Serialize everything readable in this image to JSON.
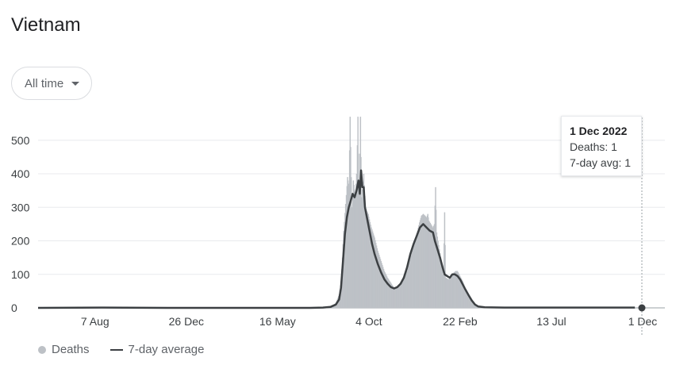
{
  "page": {
    "title": "Vietnam",
    "range_selector": "All time"
  },
  "tooltip": {
    "date": "1 Dec 2022",
    "deaths": "Deaths: 1",
    "avg": "7-day avg: 1"
  },
  "legend": {
    "deaths": "Deaths",
    "avg": "7-day average"
  },
  "colors": {
    "bars": "#bdc1c6",
    "line": "#3c4043",
    "grid": "#e8eaed"
  },
  "chart_data": {
    "type": "bar",
    "xlabel": "",
    "ylabel": "",
    "ylim": [
      0,
      570
    ],
    "y_ticks": [
      0,
      100,
      200,
      300,
      400,
      500
    ],
    "x_ticks": [
      "7 Aug",
      "26 Dec",
      "16 May",
      "4 Oct",
      "22 Feb",
      "13 Jul",
      "1 Dec"
    ],
    "x_range_ticks": [
      0,
      922
    ],
    "x_tick_positions": [
      88,
      229,
      370,
      511,
      652,
      793,
      934
    ],
    "grid": true,
    "legend_position": "bottom-left",
    "series": [
      {
        "name": "Deaths",
        "style": "bars",
        "points": [
          [
            0,
            0
          ],
          [
            80,
            1
          ],
          [
            150,
            0
          ],
          [
            300,
            0
          ],
          [
            420,
            0
          ],
          [
            440,
            1
          ],
          [
            455,
            5
          ],
          [
            460,
            15
          ],
          [
            465,
            40
          ],
          [
            468,
            80
          ],
          [
            470,
            150
          ],
          [
            472,
            230
          ],
          [
            475,
            310
          ],
          [
            478,
            390
          ],
          [
            480,
            370
          ],
          [
            482,
            570
          ],
          [
            485,
            300
          ],
          [
            487,
            380
          ],
          [
            490,
            340
          ],
          [
            492,
            400
          ],
          [
            494,
            570
          ],
          [
            496,
            350
          ],
          [
            498,
            570
          ],
          [
            500,
            330
          ],
          [
            503,
            400
          ],
          [
            506,
            300
          ],
          [
            510,
            280
          ],
          [
            515,
            240
          ],
          [
            520,
            210
          ],
          [
            525,
            170
          ],
          [
            530,
            140
          ],
          [
            535,
            110
          ],
          [
            540,
            90
          ],
          [
            545,
            75
          ],
          [
            550,
            60
          ],
          [
            555,
            60
          ],
          [
            560,
            75
          ],
          [
            565,
            95
          ],
          [
            570,
            110
          ],
          [
            575,
            150
          ],
          [
            578,
            170
          ],
          [
            580,
            190
          ],
          [
            583,
            210
          ],
          [
            586,
            230
          ],
          [
            589,
            255
          ],
          [
            592,
            275
          ],
          [
            595,
            280
          ],
          [
            598,
            275
          ],
          [
            600,
            270
          ],
          [
            602,
            280
          ],
          [
            604,
            260
          ],
          [
            607,
            250
          ],
          [
            610,
            240
          ],
          [
            612,
            250
          ],
          [
            614,
            360
          ],
          [
            616,
            225
          ],
          [
            618,
            200
          ],
          [
            620,
            175
          ],
          [
            623,
            140
          ],
          [
            626,
            100
          ],
          [
            628,
            285
          ],
          [
            630,
            90
          ],
          [
            634,
            85
          ],
          [
            638,
            95
          ],
          [
            642,
            105
          ],
          [
            645,
            110
          ],
          [
            648,
            110
          ],
          [
            652,
            95
          ],
          [
            656,
            80
          ],
          [
            660,
            60
          ],
          [
            665,
            40
          ],
          [
            670,
            25
          ],
          [
            675,
            12
          ],
          [
            680,
            6
          ],
          [
            690,
            3
          ],
          [
            720,
            2
          ],
          [
            760,
            1
          ],
          [
            800,
            1
          ],
          [
            840,
            1
          ],
          [
            880,
            1
          ],
          [
            922,
            1
          ]
        ]
      },
      {
        "name": "7-day average",
        "style": "line",
        "points": [
          [
            0,
            0
          ],
          [
            100,
            1
          ],
          [
            200,
            0
          ],
          [
            300,
            0
          ],
          [
            420,
            0
          ],
          [
            440,
            1
          ],
          [
            452,
            3
          ],
          [
            460,
            10
          ],
          [
            465,
            25
          ],
          [
            468,
            60
          ],
          [
            471,
            140
          ],
          [
            474,
            220
          ],
          [
            477,
            270
          ],
          [
            480,
            300
          ],
          [
            483,
            320
          ],
          [
            486,
            340
          ],
          [
            489,
            330
          ],
          [
            492,
            350
          ],
          [
            495,
            380
          ],
          [
            497,
            340
          ],
          [
            499,
            410
          ],
          [
            501,
            360
          ],
          [
            503,
            360
          ],
          [
            505,
            300
          ],
          [
            508,
            270
          ],
          [
            512,
            230
          ],
          [
            516,
            190
          ],
          [
            520,
            160
          ],
          [
            525,
            130
          ],
          [
            530,
            105
          ],
          [
            535,
            85
          ],
          [
            540,
            72
          ],
          [
            545,
            62
          ],
          [
            550,
            58
          ],
          [
            555,
            62
          ],
          [
            560,
            72
          ],
          [
            565,
            90
          ],
          [
            570,
            120
          ],
          [
            575,
            160
          ],
          [
            580,
            190
          ],
          [
            585,
            215
          ],
          [
            590,
            240
          ],
          [
            595,
            250
          ],
          [
            600,
            240
          ],
          [
            605,
            230
          ],
          [
            610,
            225
          ],
          [
            613,
            200
          ],
          [
            617,
            175
          ],
          [
            621,
            150
          ],
          [
            625,
            120
          ],
          [
            628,
            100
          ],
          [
            632,
            95
          ],
          [
            636,
            90
          ],
          [
            640,
            100
          ],
          [
            644,
            100
          ],
          [
            648,
            95
          ],
          [
            652,
            85
          ],
          [
            656,
            70
          ],
          [
            660,
            55
          ],
          [
            665,
            38
          ],
          [
            670,
            22
          ],
          [
            675,
            10
          ],
          [
            680,
            4
          ],
          [
            690,
            2
          ],
          [
            720,
            1
          ],
          [
            800,
            1
          ],
          [
            880,
            1
          ],
          [
            922,
            1
          ]
        ]
      }
    ]
  }
}
